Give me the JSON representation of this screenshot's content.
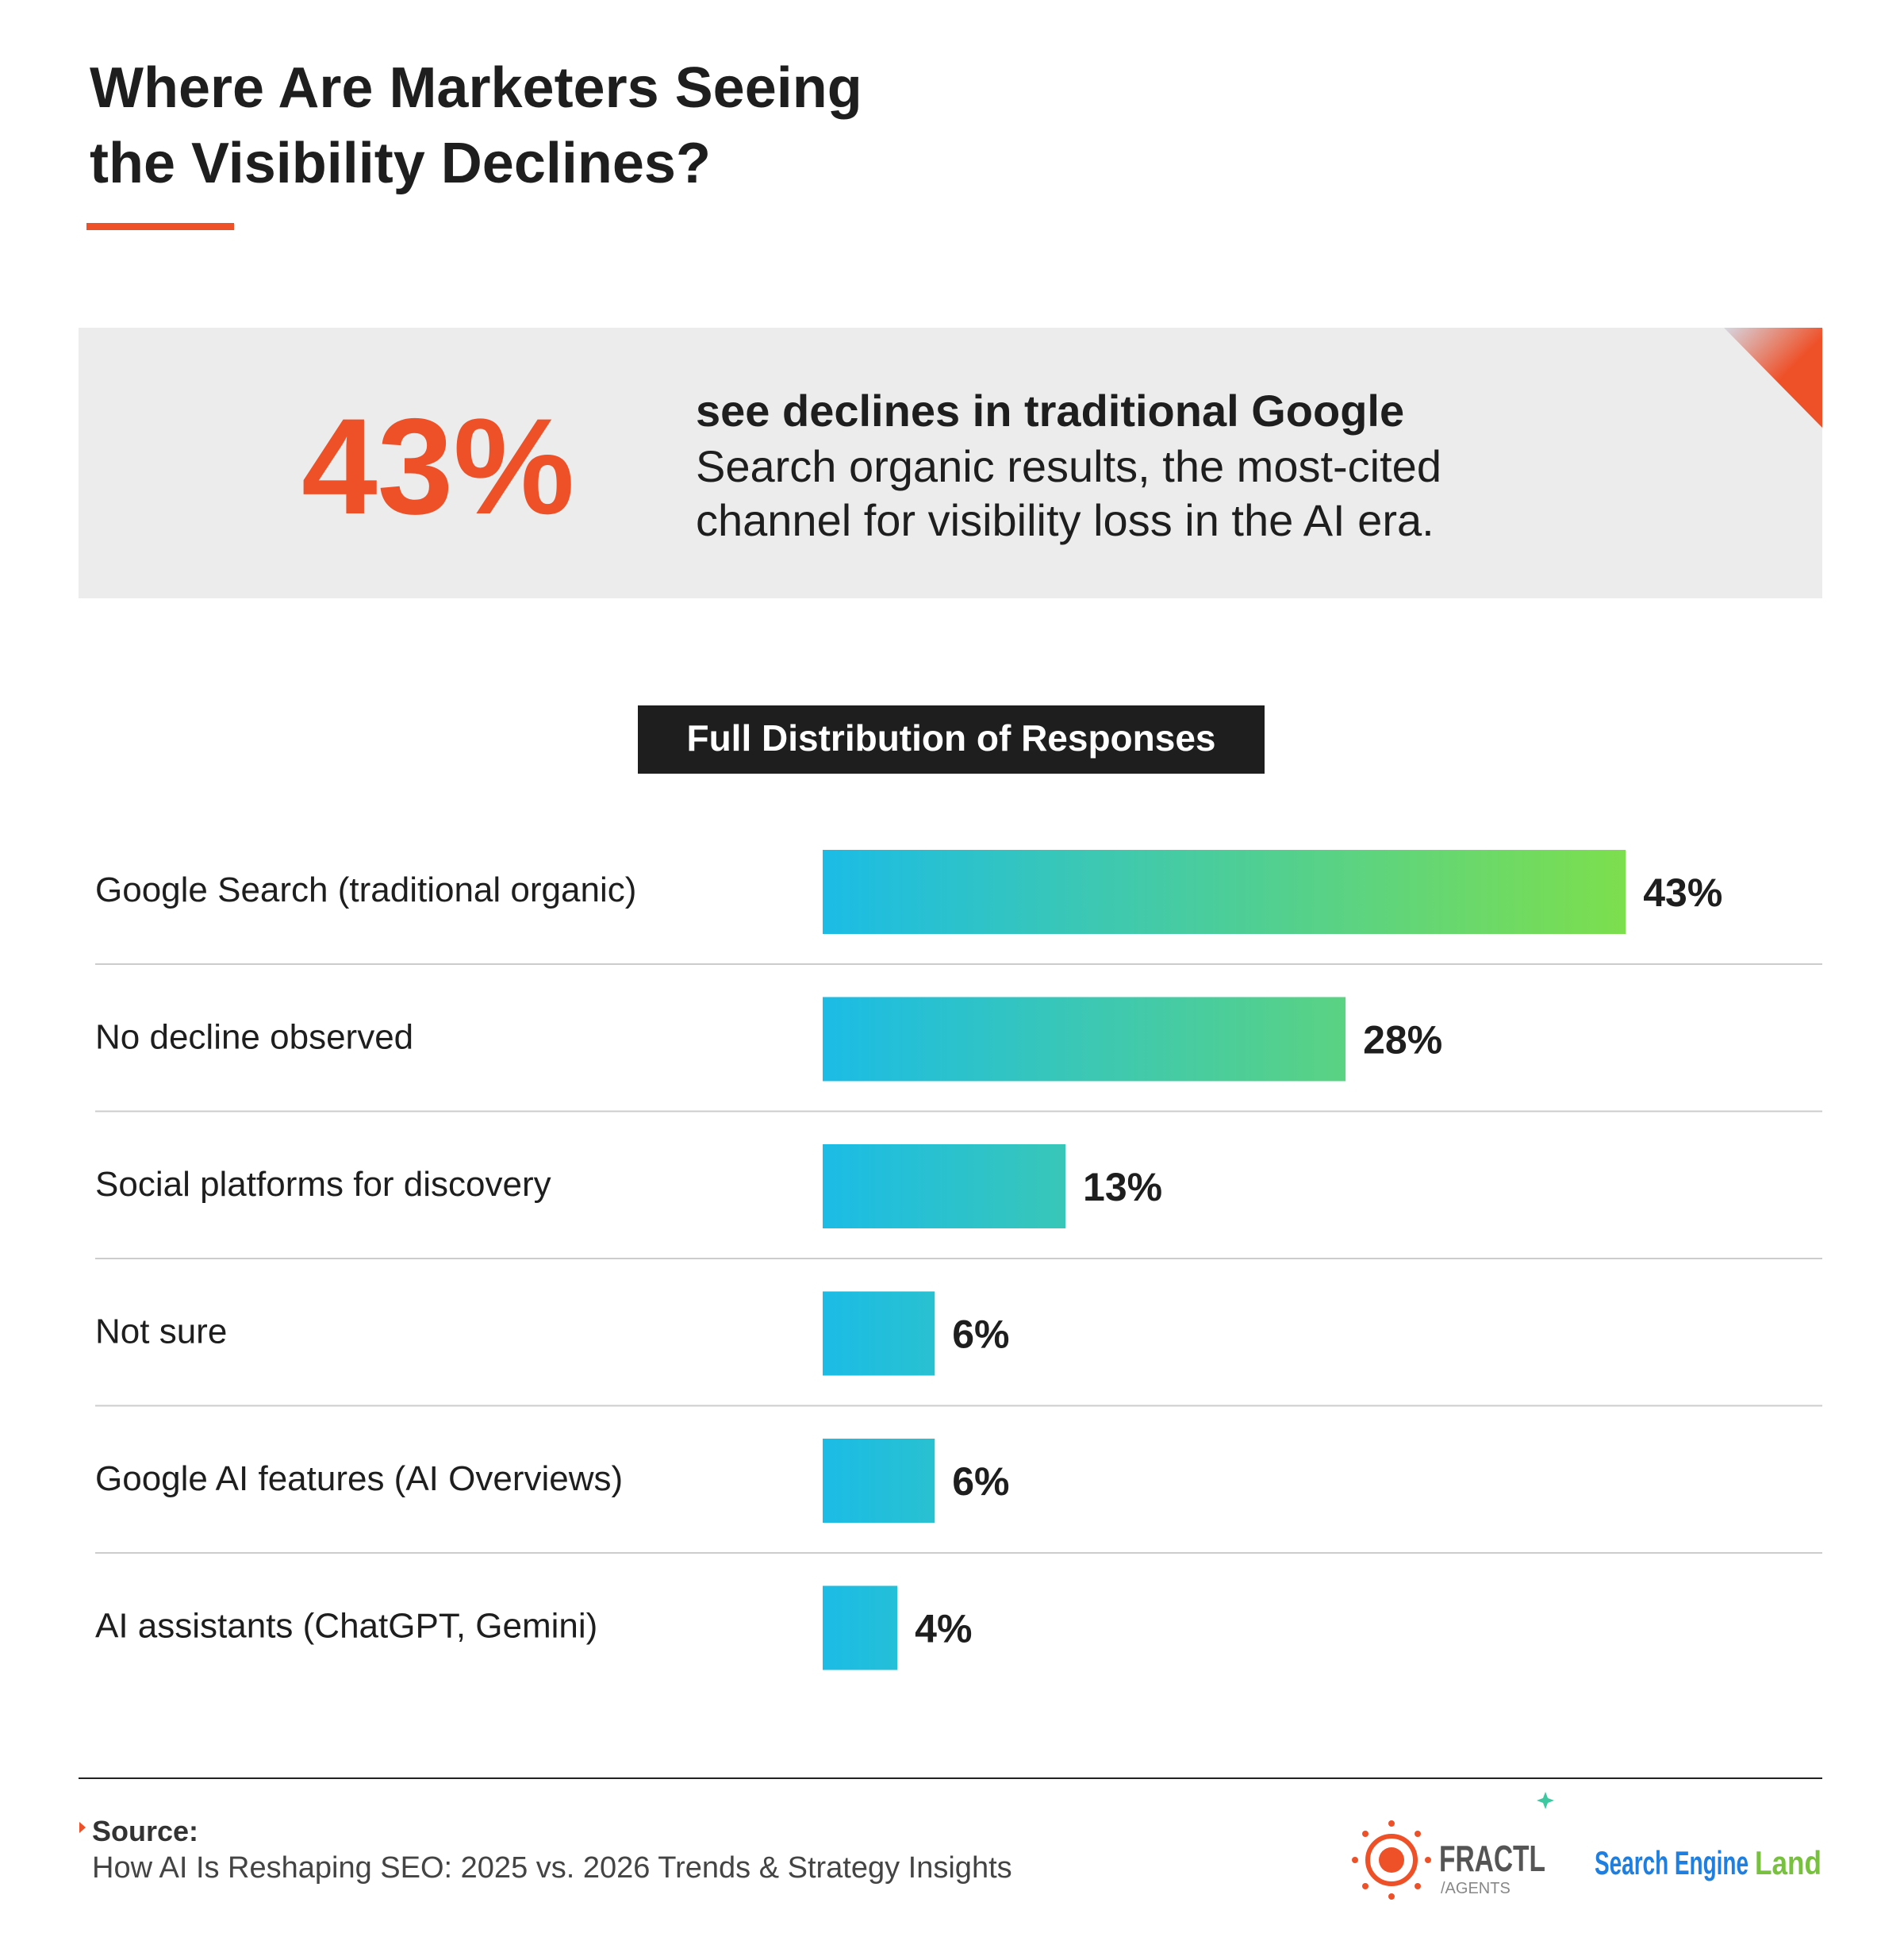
{
  "header": {
    "title_lines": [
      "Where Are Marketers Seeing",
      "the Visibility Declines?"
    ]
  },
  "callout": {
    "stat": "43%",
    "headline": "see declines in traditional Google",
    "body_lines": [
      "Search organic results, the most-cited",
      "channel for visibility loss in the AI era."
    ]
  },
  "chart_data": {
    "type": "bar",
    "orientation": "horizontal",
    "title": "Full Distribution of Responses",
    "categories": [
      "Google Search (traditional organic)",
      "No decline observed",
      "Social platforms for discovery",
      "Not sure",
      "Google AI features (AI Overviews)",
      "AI assistants (ChatGPT, Gemini)"
    ],
    "values": [
      43,
      28,
      13,
      6,
      6,
      4
    ],
    "value_labels": [
      "43%",
      "28%",
      "13%",
      "6%",
      "6%",
      "4%"
    ],
    "xlim": [
      0,
      50
    ],
    "gradient": [
      "#1bbce6",
      "#7ddf4d"
    ]
  },
  "footer": {
    "source_label": "Source:",
    "source_text": "How AI Is Reshaping SEO: 2025 vs. 2026 Trends & Strategy Insights",
    "fractl": "FRACTL",
    "fractl_sub": "/AGENTS",
    "sel_main": "Search Engine",
    "sel_accent": "Land"
  }
}
